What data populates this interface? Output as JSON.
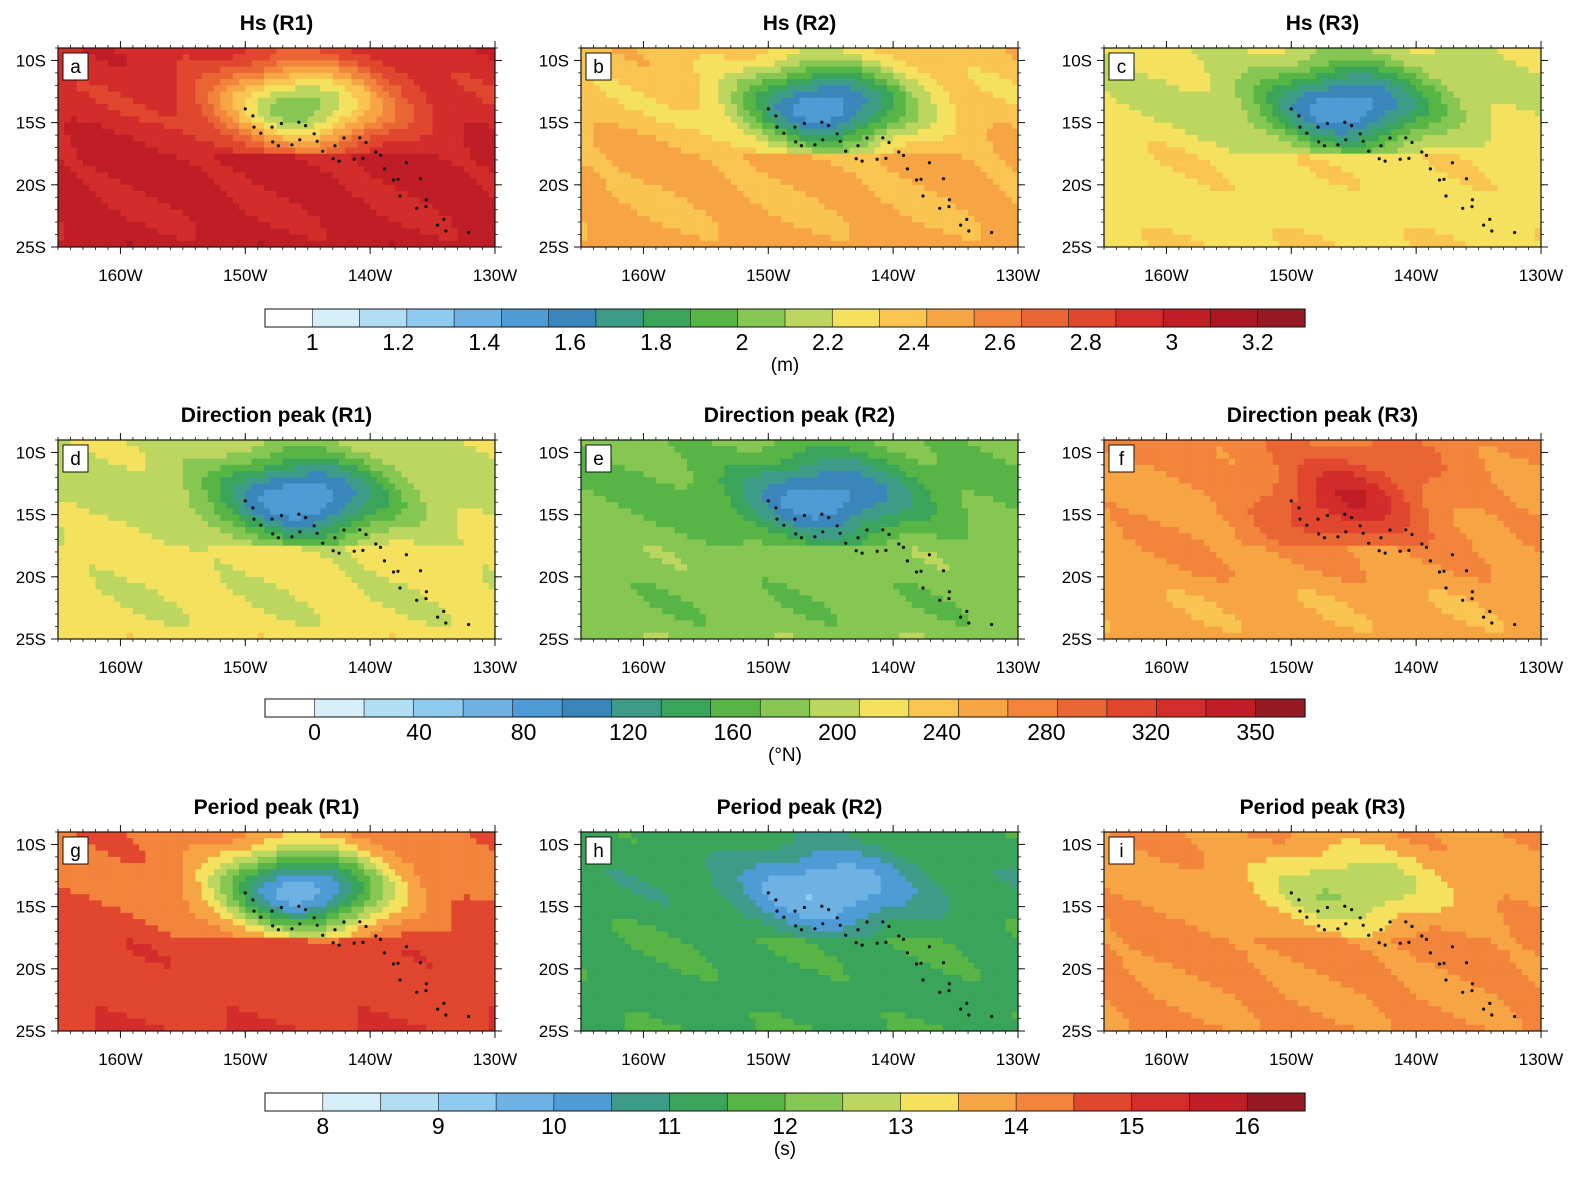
{
  "chart_data": {
    "type": "heatmap",
    "x_ticks": [
      "160W",
      "150W",
      "140W",
      "130W"
    ],
    "y_ticks": [
      "10S",
      "15S",
      "20S",
      "25S"
    ],
    "lon_range": [
      -165,
      -130
    ],
    "lat_range": [
      -25,
      -9
    ],
    "rows": [
      {
        "colorbar": {
          "unit": "(m)",
          "labels": [
            "1",
            "1.2",
            "1.4",
            "1.6",
            "1.8",
            "2",
            "2.2",
            "2.4",
            "2.6",
            "2.8",
            "3",
            "3.2"
          ],
          "colors": [
            "#ffffff",
            "#d6eefa",
            "#b2def4",
            "#8fcbee",
            "#6eb2e4",
            "#4f9bd6",
            "#3a86bb",
            "#3d9b88",
            "#39a45a",
            "#57b546",
            "#86c652",
            "#bcd660",
            "#f4e25e",
            "#f9c44f",
            "#f7a444",
            "#f2853b",
            "#ea6534",
            "#e0472e",
            "#d22d2a",
            "#c01e26",
            "#aa1723",
            "#951a22"
          ]
        },
        "panels": [
          {
            "label": "a",
            "title": "Hs (R1)",
            "base": 2.9,
            "wave_center": 2.0,
            "range": [
              0.9,
              3.3
            ]
          },
          {
            "label": "b",
            "title": "Hs (R2)",
            "base": 2.35,
            "wave_center": 1.45,
            "range": [
              0.9,
              3.3
            ]
          },
          {
            "label": "c",
            "title": "Hs (R3)",
            "base": 2.2,
            "wave_center": 1.45,
            "range": [
              0.9,
              3.3
            ]
          }
        ]
      },
      {
        "colorbar": {
          "unit": "(°N)",
          "labels": [
            "0",
            "40",
            "80",
            "120",
            "160",
            "200",
            "240",
            "280",
            "320",
            "350"
          ],
          "colors": [
            "#ffffff",
            "#d6eefa",
            "#b2def4",
            "#8fcbee",
            "#6eb2e4",
            "#4f9bd6",
            "#3a86bb",
            "#3d9b88",
            "#39a45a",
            "#57b546",
            "#86c652",
            "#bcd660",
            "#f4e25e",
            "#f9c44f",
            "#f7a444",
            "#f2853b",
            "#ea6534",
            "#e0472e",
            "#d22d2a",
            "#c01e26",
            "#951a22"
          ]
        },
        "panels": [
          {
            "label": "d",
            "title": "Direction peak (R1)",
            "base": 195,
            "wave_center": 70,
            "range": [
              -20,
              370
            ]
          },
          {
            "label": "e",
            "title": "Direction peak (R2)",
            "base": 165,
            "wave_center": 80,
            "range": [
              -20,
              370
            ]
          },
          {
            "label": "f",
            "title": "Direction peak (R3)",
            "base": 260,
            "wave_center": 340,
            "range": [
              -20,
              370
            ]
          }
        ]
      },
      {
        "colorbar": {
          "unit": "(s)",
          "labels": [
            "8",
            "9",
            "10",
            "11",
            "12",
            "13",
            "14",
            "15",
            "16"
          ],
          "colors": [
            "#ffffff",
            "#d6eefa",
            "#b2def4",
            "#8fcbee",
            "#6eb2e4",
            "#4f9bd6",
            "#3d9b88",
            "#39a45a",
            "#57b546",
            "#86c652",
            "#bcd660",
            "#f4e25e",
            "#f7a444",
            "#f2853b",
            "#e0472e",
            "#d22d2a",
            "#c01e26",
            "#951a22"
          ]
        },
        "panels": [
          {
            "label": "g",
            "title": "Period peak (R1)",
            "base": 14.3,
            "wave_center": 9.5,
            "range": [
              7.5,
              16.5
            ]
          },
          {
            "label": "h",
            "title": "Period peak (R2)",
            "base": 11.2,
            "wave_center": 9.5,
            "range": [
              7.5,
              16.5
            ]
          },
          {
            "label": "i",
            "title": "Period peak (R3)",
            "base": 13.9,
            "wave_center": 12.5,
            "range": [
              7.5,
              16.5
            ]
          }
        ]
      }
    ]
  }
}
